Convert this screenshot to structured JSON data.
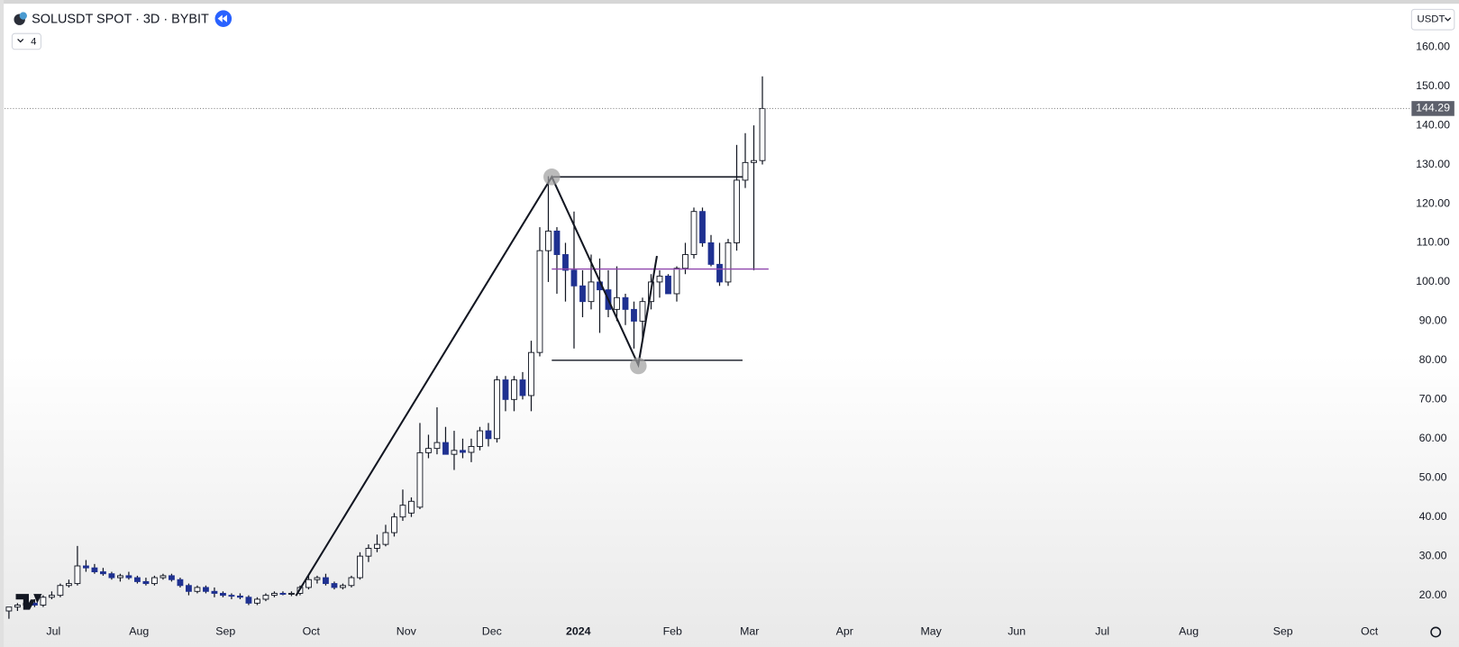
{
  "chart_data": {
    "type": "candlestick",
    "title": "SOLUSDT SPOT · 3D · BYBIT",
    "indicator_count": "4",
    "currency": "USDT",
    "up_color": "#ffffff",
    "down_color": "#1f3191",
    "wick_color": "#131722",
    "grid": false,
    "open": [
      16,
      17,
      17.5,
      18,
      17.5,
      19.5,
      20,
      22.5,
      23,
      27.5,
      27,
      26,
      25.5,
      24.5,
      25,
      24.5,
      23.5,
      23,
      24.5,
      25,
      24,
      22.5,
      21,
      22,
      21,
      20.5,
      20,
      19.8,
      19.5,
      18,
      19,
      20,
      20.5,
      20.3,
      20.5,
      22,
      24,
      24.5,
      23,
      22,
      22.5,
      24.5,
      30,
      32,
      33,
      36,
      40,
      41,
      42.5,
      56.4,
      57.5,
      59,
      56,
      57,
      56.5,
      58,
      62,
      60,
      75,
      70,
      75,
      71,
      82,
      108,
      113,
      107,
      103,
      99,
      95,
      100,
      98,
      93,
      96,
      93,
      90,
      95,
      100,
      101.5,
      97,
      103.5,
      107,
      118,
      110,
      104.5,
      100,
      110,
      126,
      130.5,
      131
    ],
    "high": [
      17,
      18,
      19,
      19,
      20,
      21,
      23,
      24,
      32.6,
      29,
      28,
      27,
      26,
      25.5,
      26,
      25,
      24.5,
      25,
      25.5,
      25.5,
      24.5,
      23,
      22.5,
      22.5,
      22,
      21,
      20.5,
      20.5,
      20,
      19.5,
      20.5,
      21,
      21,
      21,
      22.5,
      25,
      25,
      25.5,
      23.5,
      23,
      25,
      31,
      33,
      35.5,
      38,
      41,
      47,
      45,
      64,
      61,
      68,
      63,
      62,
      60,
      60,
      63,
      64,
      76,
      76,
      76,
      77,
      85,
      114,
      127,
      114,
      110,
      118,
      103,
      107,
      106,
      103,
      104,
      97,
      95,
      96,
      102,
      103,
      102,
      104,
      110,
      119,
      119,
      112,
      110,
      111,
      135,
      138,
      140,
      152.5
    ],
    "low": [
      14,
      16,
      17,
      17,
      17,
      19,
      19.5,
      22,
      22.5,
      26,
      25.5,
      25,
      24,
      23.5,
      24,
      23,
      22.5,
      22.5,
      24,
      23.5,
      22,
      20,
      20.5,
      20.5,
      19.5,
      19.5,
      19,
      19,
      17.5,
      17.5,
      18.5,
      19.5,
      20,
      19.8,
      20,
      21.5,
      23,
      22.5,
      21.5,
      21.5,
      22,
      24,
      28.5,
      31,
      32.5,
      35,
      39,
      40,
      42,
      55,
      56,
      56,
      52,
      55,
      54,
      57,
      58,
      59,
      67,
      67,
      70,
      67,
      81,
      100,
      97,
      95,
      83,
      91,
      93,
      87,
      91,
      90,
      89,
      83,
      85,
      93,
      96,
      97,
      95,
      102,
      106,
      109,
      104,
      99,
      99,
      108,
      124,
      103,
      130
    ],
    "close": [
      17,
      17.5,
      18,
      17.5,
      19.5,
      20,
      22.5,
      23,
      27.5,
      27,
      26,
      25.5,
      24.5,
      25,
      24.5,
      23.5,
      23,
      24.5,
      25,
      24,
      22.5,
      21,
      22,
      21,
      20.5,
      20,
      19.8,
      19.5,
      18,
      19,
      20,
      20.5,
      20.3,
      20.5,
      22,
      24,
      24.5,
      23,
      22,
      22.5,
      24.5,
      30,
      32,
      33,
      36,
      40,
      43,
      44,
      56.4,
      57.5,
      59,
      56,
      57,
      56.5,
      58,
      62,
      60,
      75,
      70,
      75,
      71,
      82,
      108,
      113,
      107,
      103,
      99,
      95,
      100,
      98,
      93,
      96,
      93,
      90,
      95,
      100,
      101.5,
      97,
      103.5,
      107,
      118,
      110,
      104.5,
      100,
      110,
      126,
      130.5,
      131,
      144.29
    ],
    "xlim": [
      -0.5,
      163.6
    ],
    "xticks": [
      {
        "value": 5.2,
        "label": "Jul"
      },
      {
        "value": 15.2,
        "label": "Aug"
      },
      {
        "value": 25.3,
        "label": "Sep"
      },
      {
        "value": 35.3,
        "label": "Oct"
      },
      {
        "value": 46.4,
        "label": "Nov"
      },
      {
        "value": 56.4,
        "label": "Dec"
      },
      {
        "value": 66.5,
        "label": "2024"
      },
      {
        "value": 77.5,
        "label": "Feb"
      },
      {
        "value": 86.5,
        "label": "Mar"
      },
      {
        "value": 97.6,
        "label": "Apr"
      },
      {
        "value": 107.7,
        "label": "May"
      },
      {
        "value": 117.7,
        "label": "Jun"
      },
      {
        "value": 127.7,
        "label": "Jul"
      },
      {
        "value": 137.8,
        "label": "Aug"
      },
      {
        "value": 148.8,
        "label": "Sep"
      },
      {
        "value": 158.9,
        "label": "Oct"
      }
    ],
    "ylim": [
      14,
      172
    ],
    "yticks": [
      {
        "value": 20,
        "label": "20.00"
      },
      {
        "value": 30,
        "label": "30.00"
      },
      {
        "value": 40,
        "label": "40.00"
      },
      {
        "value": 50,
        "label": "50.00"
      },
      {
        "value": 60,
        "label": "60.00"
      },
      {
        "value": 70,
        "label": "70.00"
      },
      {
        "value": 80,
        "label": "80.00"
      },
      {
        "value": 90,
        "label": "90.00"
      },
      {
        "value": 100,
        "label": "100.00"
      },
      {
        "value": 110,
        "label": "110.00"
      },
      {
        "value": 120,
        "label": "120.00"
      },
      {
        "value": 130,
        "label": "130.00"
      },
      {
        "value": 140,
        "label": "140.00"
      },
      {
        "value": 150,
        "label": "150.00"
      },
      {
        "value": 160,
        "label": "160.00"
      }
    ]
  }
}
